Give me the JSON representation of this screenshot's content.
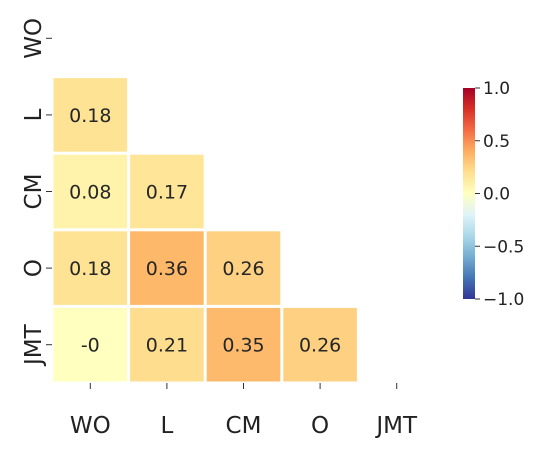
{
  "chart_data": {
    "type": "heatmap",
    "title": "",
    "xlabel": "",
    "ylabel": "",
    "variables": [
      "WO",
      "L",
      "CM",
      "O",
      "JMT"
    ],
    "mask": "upper-triangle-and-diagonal",
    "cells": [
      {
        "row": "L",
        "col": "WO",
        "value": 0.18,
        "label": "0.18"
      },
      {
        "row": "CM",
        "col": "WO",
        "value": 0.08,
        "label": "0.08"
      },
      {
        "row": "CM",
        "col": "L",
        "value": 0.17,
        "label": "0.17"
      },
      {
        "row": "O",
        "col": "WO",
        "value": 0.18,
        "label": "0.18"
      },
      {
        "row": "O",
        "col": "L",
        "value": 0.36,
        "label": "0.36"
      },
      {
        "row": "O",
        "col": "CM",
        "value": 0.26,
        "label": "0.26"
      },
      {
        "row": "JMT",
        "col": "WO",
        "value": -0.0,
        "label": "-0"
      },
      {
        "row": "JMT",
        "col": "L",
        "value": 0.21,
        "label": "0.21"
      },
      {
        "row": "JMT",
        "col": "CM",
        "value": 0.35,
        "label": "0.35"
      },
      {
        "row": "JMT",
        "col": "O",
        "value": 0.26,
        "label": "0.26"
      }
    ],
    "colormap": "RdYlBu_r",
    "colorbar": {
      "range": [
        -1.0,
        1.0
      ],
      "ticks": [
        1.0,
        0.5,
        0.0,
        -0.5,
        -1.0
      ],
      "tick_labels": [
        "1.0",
        "0.5",
        "0.0",
        "−0.5",
        "−1.0"
      ],
      "position": "right"
    },
    "grid": false
  }
}
